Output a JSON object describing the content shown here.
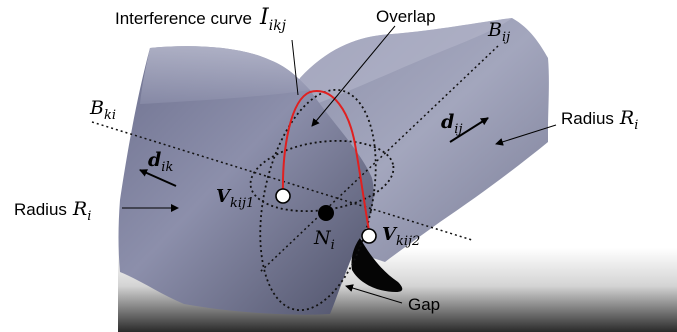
{
  "labels": {
    "interference_text": "Interference curve",
    "interference_sym": "I",
    "interference_sub": "ikj",
    "overlap": "Overlap",
    "b_ij_sym": "B",
    "b_ij_sub": "ij",
    "b_ki_sym": "B",
    "b_ki_sub": "ki",
    "radius_right_text": "Radius",
    "radius_right_sym": "R",
    "radius_right_sub": "i",
    "radius_left_text": "Radius",
    "radius_left_sym": "R",
    "radius_left_sub": "i",
    "d_ij_sym": "d",
    "d_ij_sub": "ij",
    "d_ik_sym": "d",
    "d_ik_sub": "ik",
    "v1_sym": "V",
    "v1_sub": "kij1",
    "v2_sym": "V",
    "v2_sub": "kij2",
    "n_sym": "N",
    "n_sub": "i",
    "gap": "Gap"
  },
  "colors": {
    "interference_curve": "#e02020",
    "surface_light": "#9a9db5",
    "surface_dark": "#55586e",
    "floor_dark": "#2e2e2e"
  }
}
